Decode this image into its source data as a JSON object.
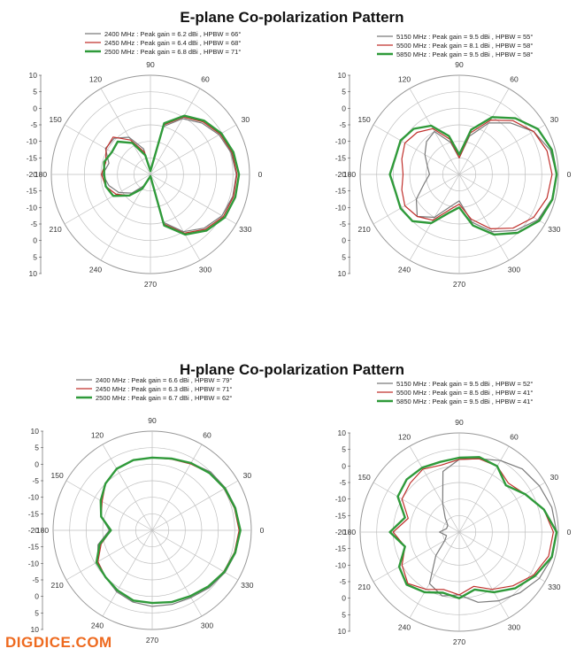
{
  "titles": {
    "e_plane": "E-plane Co-polarization Pattern",
    "h_plane": "H-plane Co-polarization Pattern"
  },
  "watermark": "DIGDICE.COM",
  "colors": {
    "gray": "#7a7a7a",
    "red": "#c0302c",
    "green": "#2f9a3a",
    "grid": "#bfbfbf"
  },
  "chart_data": [
    {
      "type": "polar",
      "title": "E-plane Co-polarization Pattern",
      "r_ticks": [
        "-20",
        "-15",
        "-10",
        "-5",
        "0",
        "5",
        "10"
      ],
      "r_ticks_full": [
        "10",
        "5",
        "0",
        "-5",
        "-10",
        "-15",
        "-20",
        "-15",
        "-10",
        "-5",
        "0",
        "5",
        "10"
      ],
      "rlim": [
        -20,
        10
      ],
      "angle_labels": [
        "0",
        "30",
        "60",
        "90",
        "120",
        "150",
        "180",
        "210",
        "240",
        "270",
        "300",
        "330"
      ],
      "legend": [
        "2400 MHz : Peak gain = 6.2 dBi , HPBW = 66°",
        "2450 MHz : Peak gain = 6.4 dBi , HPBW = 68°",
        "2500 MHz : Peak gain = 6.8 dBi , HPBW = 71°"
      ],
      "angles": [
        0,
        15,
        30,
        45,
        60,
        75,
        90,
        105,
        120,
        135,
        150,
        165,
        180,
        195,
        210,
        225,
        240,
        255,
        270,
        285,
        300,
        315,
        330,
        345
      ],
      "series": [
        {
          "name": "2400 MHz",
          "color": "gray",
          "width": 1.2,
          "values": [
            6.0,
            5.3,
            4.0,
            2.0,
            -0.5,
            -5,
            -19,
            -12,
            -7,
            -4.5,
            -4.3,
            -7,
            -5.5,
            -7,
            -9,
            -12,
            -16,
            -19,
            -19.5,
            -5,
            0,
            3,
            5,
            5.8
          ]
        },
        {
          "name": "2450 MHz",
          "color": "red",
          "width": 1.2,
          "values": [
            6.2,
            5.6,
            4.4,
            2.5,
            0,
            -4.5,
            -19,
            -13,
            -8,
            -4,
            -4.5,
            -6,
            -5.2,
            -6,
            -8,
            -11,
            -15,
            -19,
            -19.5,
            -4.5,
            0.5,
            3.5,
            5.5,
            6
          ]
        },
        {
          "name": "2500 MHz",
          "color": "green",
          "width": 2.4,
          "values": [
            6.8,
            6.0,
            4.8,
            3.0,
            0.5,
            -4,
            -19,
            -14,
            -9,
            -6,
            -6.5,
            -5.5,
            -6,
            -6,
            -7,
            -11,
            -15,
            -19,
            -19.5,
            -4,
            1,
            4,
            6,
            6.6
          ]
        }
      ]
    },
    {
      "type": "polar",
      "title": "E-plane Co-polarization Pattern",
      "r_ticks": [
        "-20",
        "-15",
        "-10",
        "-5",
        "0",
        "5",
        "10"
      ],
      "r_ticks_full": [
        "10",
        "5",
        "0",
        "-5",
        "-10",
        "-15",
        "-20",
        "-15",
        "-10",
        "-5",
        "0",
        "5",
        "10"
      ],
      "rlim": [
        -20,
        10
      ],
      "angle_labels": [
        "0",
        "30",
        "60",
        "90",
        "120",
        "150",
        "180",
        "210",
        "240",
        "270",
        "300",
        "330"
      ],
      "legend": [
        "5150 MHz : Peak gain = 9.5 dBi , HPBW = 55°",
        "5500 MHz : Peak gain = 8.1 dBi , HPBW = 58°",
        "5850 MHz : Peak gain = 9.5 dBi , HPBW = 58°"
      ],
      "angles": [
        0,
        15,
        30,
        45,
        60,
        75,
        90,
        105,
        120,
        135,
        150,
        165,
        180,
        195,
        210,
        225,
        240,
        255,
        270,
        285,
        300,
        315,
        330,
        345
      ],
      "series": [
        {
          "name": "5150 MHz",
          "color": "gray",
          "width": 1.2,
          "values": [
            9.5,
            8.5,
            6,
            2,
            -2,
            -8,
            -15,
            -10,
            -5,
            -6,
            -8,
            -10,
            -11,
            -9,
            -5,
            -2,
            -5,
            -10,
            -12,
            -5,
            0,
            4,
            7.5,
            9
          ]
        },
        {
          "name": "5500 MHz",
          "color": "red",
          "width": 1.2,
          "values": [
            8.1,
            7.5,
            6,
            3,
            -1,
            -7,
            -15,
            -9,
            -4,
            -2,
            -1,
            -2,
            -3,
            -2,
            -1,
            -2,
            -4,
            -9,
            -11,
            -6,
            -1,
            3,
            6,
            7.5
          ]
        },
        {
          "name": "5850 MHz",
          "color": "green",
          "width": 2.4,
          "values": [
            9.5,
            9,
            7.5,
            4,
            0,
            -6,
            -14,
            -8,
            -3,
            -0.5,
            0.5,
            0,
            1,
            0,
            0.5,
            0,
            -3,
            -8,
            -10,
            -4,
            1,
            5,
            8,
            9.2
          ]
        }
      ]
    },
    {
      "type": "polar",
      "title": "H-plane Co-polarization Pattern",
      "r_ticks": [
        "-20",
        "-15",
        "-10",
        "-5",
        "0",
        "5",
        "10"
      ],
      "r_ticks_full": [
        "10",
        "5",
        "0",
        "-5",
        "-10",
        "-15",
        "-20",
        "-15",
        "-10",
        "-5",
        "0",
        "5",
        "10"
      ],
      "rlim": [
        -20,
        10
      ],
      "angle_labels": [
        "0",
        "30",
        "60",
        "90",
        "120",
        "150",
        "180",
        "210",
        "240",
        "270",
        "300",
        "330"
      ],
      "legend": [
        "2400 MHz : Peak gain = 6.6 dBi , HPBW = 79°",
        "2450 MHz : Peak gain = 6.3 dBi , HPBW = 71°",
        "2500 MHz : Peak gain = 6.7 dBi , HPBW = 62°"
      ],
      "angles": [
        0,
        15,
        30,
        45,
        60,
        75,
        90,
        105,
        120,
        135,
        150,
        165,
        180,
        195,
        210,
        225,
        240,
        255,
        270,
        285,
        300,
        315,
        330,
        345
      ],
      "series": [
        {
          "name": "2400 MHz",
          "color": "gray",
          "width": 1.2,
          "values": [
            6.6,
            6.2,
            5.6,
            5,
            3.5,
            2.5,
            2,
            2,
            1.5,
            0,
            -2,
            -4,
            -7,
            -3,
            -1,
            0,
            1.5,
            2.5,
            3,
            3.2,
            3.5,
            4.5,
            5.5,
            6.2
          ]
        },
        {
          "name": "2450 MHz",
          "color": "red",
          "width": 1.2,
          "values": [
            6.3,
            5.8,
            5.2,
            4.5,
            3.2,
            2.3,
            2,
            2,
            1.5,
            0,
            -2.5,
            -4,
            -7.5,
            -4,
            -1,
            0,
            1,
            2,
            2,
            2.5,
            3,
            4,
            5,
            5.8
          ]
        },
        {
          "name": "2500 MHz",
          "color": "green",
          "width": 2.4,
          "values": [
            6.7,
            6,
            5.4,
            4.5,
            3.5,
            2.5,
            2,
            2,
            1.5,
            0,
            -2,
            -4,
            -7.5,
            -3.5,
            -0.5,
            0,
            1,
            2,
            2,
            2.5,
            3,
            4,
            5.2,
            6
          ]
        }
      ]
    },
    {
      "type": "polar",
      "title": "H-plane Co-polarization Pattern",
      "r_ticks": [
        "-20",
        "-15",
        "-10",
        "-5",
        "0",
        "5",
        "10"
      ],
      "r_ticks_full": [
        "10",
        "5",
        "0",
        "-5",
        "-10",
        "-15",
        "-20",
        "-15",
        "-10",
        "-5",
        "0",
        "5",
        "10"
      ],
      "rlim": [
        -20,
        10
      ],
      "angle_labels": [
        "0",
        "30",
        "60",
        "90",
        "120",
        "150",
        "180",
        "210",
        "240",
        "270",
        "300",
        "330"
      ],
      "legend": [
        "5150 MHz : Peak gain = 9.5 dBi , HPBW = 52°",
        "5500 MHz : Peak gain = 8.5 dBi , HPBW = 41°",
        "5850 MHz : Peak gain = 9.5 dBi , HPBW = 41°"
      ],
      "angles": [
        0,
        15,
        30,
        45,
        60,
        75,
        90,
        105,
        120,
        135,
        150,
        165,
        180,
        195,
        210,
        225,
        240,
        255,
        270,
        285,
        300,
        315,
        330,
        345
      ],
      "series": [
        {
          "name": "5150 MHz",
          "color": "gray",
          "width": 1.2,
          "values": [
            9.5,
            9,
            8,
            7,
            5,
            3,
            2,
            -1,
            -10,
            -14,
            -16,
            -16,
            -14,
            -16,
            -15,
            -10,
            -2,
            0,
            -1,
            2,
            4,
            6,
            8,
            9.2
          ]
        },
        {
          "name": "5500 MHz",
          "color": "red",
          "width": 1.2,
          "values": [
            8.5,
            6.5,
            3,
            1,
            3,
            3,
            2,
            1,
            2,
            1,
            0,
            -4,
            0,
            -3,
            0,
            2,
            0,
            -2,
            -1,
            -3,
            0,
            3,
            6,
            8
          ]
        },
        {
          "name": "5850 MHz",
          "color": "green",
          "width": 2.4,
          "values": [
            9.5,
            6.5,
            3,
            0,
            3,
            3.5,
            2.5,
            2,
            2.5,
            2.5,
            1.5,
            -3,
            1,
            -3,
            1,
            2.5,
            1,
            -1,
            0,
            -2,
            1,
            4,
            6.5,
            9
          ]
        }
      ]
    }
  ]
}
